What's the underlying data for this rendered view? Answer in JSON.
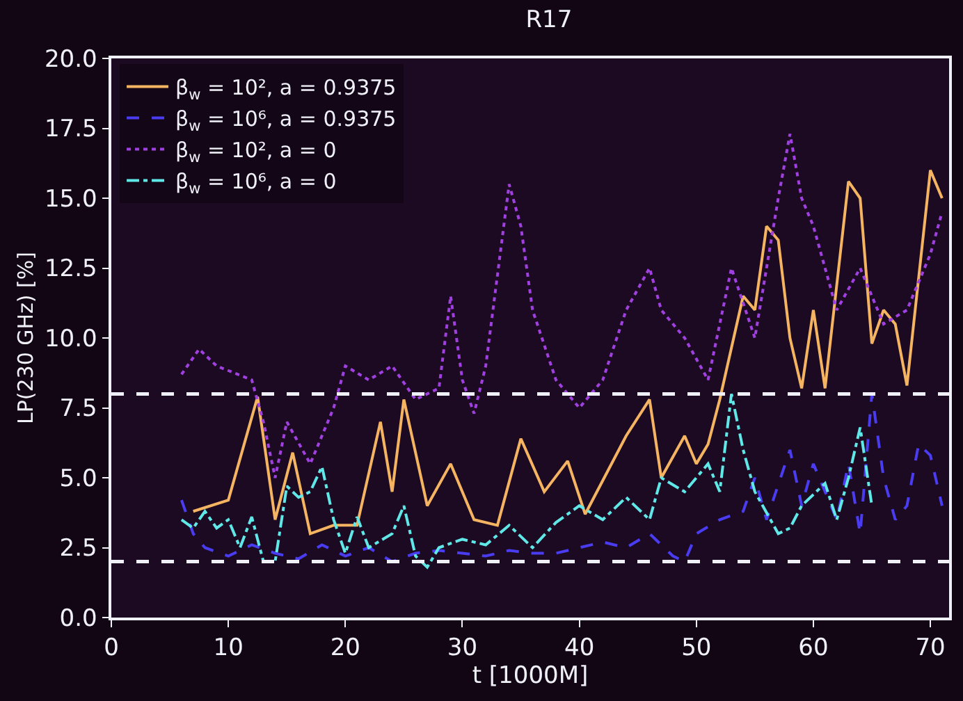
{
  "chart_data": {
    "type": "line",
    "title": "R17",
    "xlabel": "t [1000M]",
    "ylabel": "LP(230 GHz) [%]",
    "xlim": [
      0,
      71.6
    ],
    "xticks": [
      0,
      10,
      20,
      30,
      40,
      50,
      60,
      70
    ],
    "ylim": [
      0,
      20
    ],
    "yticks": [
      {
        "value": 0,
        "label": "0.0"
      },
      {
        "value": 2.5,
        "label": "2.5"
      },
      {
        "value": 5,
        "label": "5.0"
      },
      {
        "value": 7.5,
        "label": "7.5"
      },
      {
        "value": 10,
        "label": "10.0"
      },
      {
        "value": 12.5,
        "label": "12.5"
      },
      {
        "value": 15,
        "label": "15.0"
      },
      {
        "value": 17.5,
        "label": "17.5"
      },
      {
        "value": 20,
        "label": "20.0"
      }
    ],
    "grid": false,
    "legend": "top left",
    "marker": "none",
    "ref_lines": [
      {
        "axis": "y",
        "value": 8.0,
        "color": "#f0f0f8",
        "line_style": "dashed"
      },
      {
        "axis": "y",
        "value": 2.0,
        "color": "#f0f0f8",
        "line_style": "dashed"
      }
    ],
    "series": [
      {
        "name": "β$_{w}$ = 10², a = 0.9375",
        "color": "#f5b461",
        "line_style": "solid",
        "x": [
          7,
          10,
          12.5,
          14,
          15.5,
          17,
          19,
          21,
          23,
          24,
          25,
          27,
          29,
          31,
          33,
          35,
          37,
          39,
          40.5,
          44,
          46,
          47,
          49,
          50,
          51,
          52,
          54,
          55,
          56,
          57,
          58,
          59,
          60,
          61,
          63,
          64,
          65,
          66,
          67,
          68,
          70,
          71
        ],
        "values": [
          3.8,
          4.2,
          7.9,
          3.5,
          5.9,
          3.0,
          3.3,
          3.3,
          7.0,
          4.5,
          7.8,
          4.0,
          5.5,
          3.5,
          3.3,
          6.4,
          4.5,
          5.6,
          3.7,
          6.5,
          7.8,
          5.0,
          6.5,
          5.5,
          6.2,
          7.8,
          11.5,
          11.0,
          14.0,
          13.5,
          10.0,
          8.2,
          11.0,
          8.2,
          15.6,
          15.0,
          9.8,
          11.0,
          10.5,
          8.3,
          16.0,
          15.0
        ]
      },
      {
        "name": "β$_{w}$ = 10⁶, a = 0.9375",
        "color": "#4a3cf0",
        "line_style": "dashed",
        "x": [
          6,
          7,
          8,
          10,
          12,
          14,
          16,
          18,
          20,
          22,
          24,
          26,
          28,
          30,
          32,
          34,
          36,
          38,
          40,
          42,
          44,
          46,
          48,
          49,
          50,
          52,
          54,
          55,
          56,
          58,
          59,
          60,
          62,
          63,
          64,
          65,
          66,
          67,
          68,
          69,
          70,
          71
        ],
        "values": [
          4.2,
          3.0,
          2.5,
          2.2,
          2.6,
          2.3,
          2.1,
          2.6,
          2.2,
          2.5,
          2.0,
          2.3,
          2.4,
          2.3,
          2.2,
          2.4,
          2.3,
          2.3,
          2.5,
          2.7,
          2.5,
          3.0,
          2.2,
          2.0,
          3.0,
          3.5,
          3.8,
          5.0,
          3.5,
          6.0,
          4.0,
          5.5,
          3.5,
          5.5,
          3.0,
          8.0,
          5.0,
          3.5,
          4.0,
          6.2,
          5.8,
          4.0
        ]
      },
      {
        "name": "β$_{w}$ = 10², a = 0",
        "color": "#a040e0",
        "line_style": "dotted",
        "x": [
          6,
          7.5,
          9,
          12,
          13,
          14,
          15,
          17,
          19,
          20,
          22,
          24,
          26,
          28,
          29,
          30,
          31,
          32,
          34,
          35,
          36,
          38,
          40,
          42,
          44,
          46,
          47,
          49,
          51,
          53,
          55,
          57,
          58,
          59,
          60,
          62,
          64,
          66,
          68,
          70,
          71
        ],
        "values": [
          8.7,
          9.6,
          9.0,
          8.5,
          7.0,
          5.0,
          7.0,
          5.5,
          7.5,
          9.0,
          8.5,
          9.0,
          7.8,
          8.2,
          11.5,
          8.5,
          7.3,
          9.0,
          15.5,
          14.0,
          11.0,
          8.5,
          7.5,
          8.5,
          11.0,
          12.5,
          11.0,
          10.0,
          8.5,
          12.5,
          10.0,
          15.0,
          17.3,
          15.0,
          14.0,
          11.0,
          12.5,
          10.5,
          11.0,
          13.0,
          14.5
        ]
      },
      {
        "name": "β$_{w}$ = 10⁶, a = 0",
        "color": "#60e8e8",
        "line_style": "dashdot",
        "x": [
          6,
          7,
          8,
          9,
          10,
          11,
          12,
          13,
          14,
          15,
          16,
          17,
          18,
          19,
          20,
          21,
          22,
          24,
          25,
          26,
          27,
          28,
          30,
          32,
          34,
          36,
          38,
          40,
          42,
          44,
          46,
          47,
          49,
          50,
          51,
          52,
          53,
          54,
          55,
          57,
          58,
          59,
          61,
          62,
          63,
          64,
          65
        ],
        "values": [
          3.5,
          3.2,
          3.8,
          3.2,
          3.5,
          2.5,
          3.6,
          2.0,
          2.0,
          4.7,
          4.3,
          4.5,
          5.4,
          3.5,
          2.3,
          3.6,
          2.5,
          3.0,
          4.0,
          2.2,
          1.8,
          2.5,
          2.8,
          2.6,
          3.3,
          2.5,
          3.4,
          4.0,
          3.5,
          4.3,
          3.5,
          5.0,
          4.5,
          5.0,
          5.5,
          4.5,
          8.0,
          6.0,
          4.5,
          3.0,
          3.2,
          4.0,
          4.8,
          3.5,
          5.0,
          6.8,
          4.0
        ]
      }
    ]
  }
}
